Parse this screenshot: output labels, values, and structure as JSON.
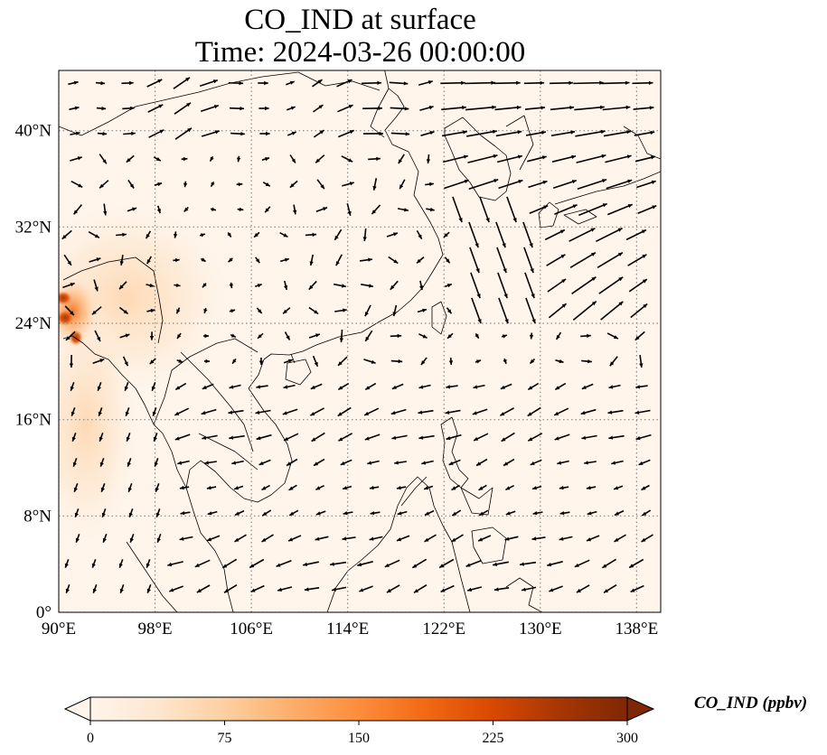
{
  "title": {
    "line1": "CO_IND at surface",
    "line2": "Time: 2024-03-26 00:00:00"
  },
  "axes": {
    "lon_ticks": [
      "90°E",
      "98°E",
      "106°E",
      "114°E",
      "122°E",
      "130°E",
      "138°E"
    ],
    "lat_ticks": [
      "0°",
      "8°N",
      "16°N",
      "24°N",
      "32°N",
      "40°N"
    ],
    "lon_range": [
      90,
      140
    ],
    "lat_range": [
      0,
      45
    ],
    "gridlines": "dotted"
  },
  "colorbar": {
    "label": "CO_IND (ppbv)",
    "ticks": [
      "0",
      "75",
      "150",
      "225",
      "300"
    ],
    "min": 0,
    "max": 300,
    "extend": "both",
    "colormap": [
      "#fff5eb",
      "#fee6ce",
      "#fdd0a2",
      "#fdae6b",
      "#fd8d3c",
      "#f16913",
      "#d94801",
      "#a63603",
      "#7f2704"
    ]
  },
  "colors": {
    "background_field": "#fff5eb",
    "vector": "#000000",
    "coast": "#000000"
  }
}
